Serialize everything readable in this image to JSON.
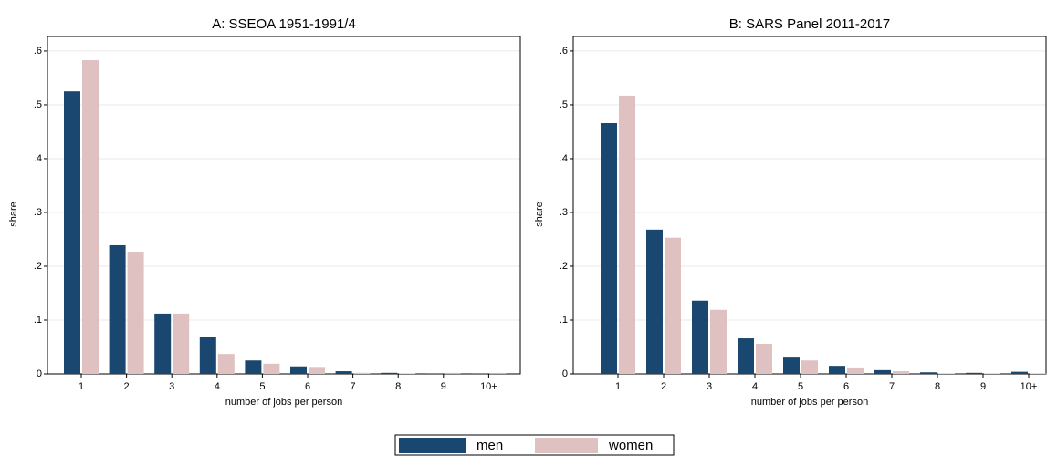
{
  "chart_data": [
    {
      "type": "bar",
      "title": "A: SSEOA 1951-1991/4",
      "x_label": "number of jobs per person",
      "y_label": "share",
      "categories": [
        "1",
        "2",
        "3",
        "4",
        "5",
        "6",
        "7",
        "8",
        "9",
        "10+"
      ],
      "series": [
        {
          "name": "men",
          "color": "#1a476f",
          "values": [
            0.525,
            0.239,
            0.112,
            0.068,
            0.025,
            0.014,
            0.005,
            0.002,
            0.001,
            0.001
          ]
        },
        {
          "name": "women",
          "color": "#dfc1c2",
          "values": [
            0.583,
            0.227,
            0.112,
            0.037,
            0.019,
            0.013,
            0.002,
            0.001,
            0.0005,
            0.0005
          ]
        }
      ],
      "ylim": [
        0,
        0.627
      ],
      "yticks": [
        0,
        {
          "value": 0.1,
          "label": ".1"
        },
        {
          "value": 0.2,
          "label": ".2"
        },
        {
          "value": 0.3,
          "label": ".3"
        },
        {
          "value": 0.4,
          "label": ".4"
        },
        {
          "value": 0.5,
          "label": ".5"
        },
        {
          "value": 0.6,
          "label": ".6"
        }
      ],
      "grid": true
    },
    {
      "type": "bar",
      "title": "B: SARS Panel 2011-2017",
      "x_label": "number of jobs per person",
      "y_label": "share",
      "categories": [
        "1",
        "2",
        "3",
        "4",
        "5",
        "6",
        "7",
        "8",
        "9",
        "10+"
      ],
      "series": [
        {
          "name": "men",
          "color": "#1a476f",
          "values": [
            0.466,
            0.268,
            0.136,
            0.066,
            0.032,
            0.015,
            0.007,
            0.003,
            0.002,
            0.004
          ]
        },
        {
          "name": "women",
          "color": "#dfc1c2",
          "values": [
            0.517,
            0.253,
            0.119,
            0.056,
            0.025,
            0.012,
            0.005,
            0.001,
            0.001,
            0.001
          ]
        }
      ],
      "ylim": [
        0,
        0.627
      ],
      "yticks": [
        0,
        {
          "value": 0.1,
          "label": ".1"
        },
        {
          "value": 0.2,
          "label": ".2"
        },
        {
          "value": 0.3,
          "label": ".3"
        },
        {
          "value": 0.4,
          "label": ".4"
        },
        {
          "value": 0.5,
          "label": ".5"
        },
        {
          "value": 0.6,
          "label": ".6"
        }
      ],
      "grid": true
    }
  ]
}
